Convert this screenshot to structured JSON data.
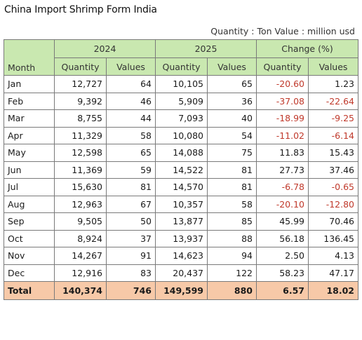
{
  "title": "China Import Shrimp Form India",
  "units": "Quantity : Ton Value : million usd",
  "header": {
    "month": "Month",
    "groups": [
      "2024",
      "2025",
      "Change (%)"
    ],
    "sub": [
      "Quantity",
      "Values",
      "Quantity",
      "Values",
      "Quantity",
      "Values"
    ]
  },
  "rows": [
    [
      "Jan",
      "12,727",
      "64",
      "10,105",
      "65",
      "-20.60",
      "1.23"
    ],
    [
      "Feb",
      "9,392",
      "46",
      "5,909",
      "36",
      "-37.08",
      "-22.64"
    ],
    [
      "Mar",
      "8,755",
      "44",
      "7,093",
      "40",
      "-18.99",
      "-9.25"
    ],
    [
      "Apr",
      "11,329",
      "58",
      "10,080",
      "54",
      "-11.02",
      "-6.14"
    ],
    [
      "May",
      "12,598",
      "65",
      "14,088",
      "75",
      "11.83",
      "15.43"
    ],
    [
      "Jun",
      "11,369",
      "59",
      "14,522",
      "81",
      "27.73",
      "37.46"
    ],
    [
      "Jul",
      "15,630",
      "81",
      "14,570",
      "81",
      "-6.78",
      "-0.65"
    ],
    [
      "Aug",
      "12,963",
      "67",
      "10,357",
      "58",
      "-20.10",
      "-12.80"
    ],
    [
      "Sep",
      "9,505",
      "50",
      "13,877",
      "85",
      "45.99",
      "70.46"
    ],
    [
      "Oct",
      "8,924",
      "37",
      "13,937",
      "88",
      "56.18",
      "136.45"
    ],
    [
      "Nov",
      "14,267",
      "91",
      "14,623",
      "94",
      "2.50",
      "4.13"
    ],
    [
      "Dec",
      "12,916",
      "83",
      "20,437",
      "122",
      "58.23",
      "47.17"
    ]
  ],
  "total": [
    "Total",
    "140,374",
    "746",
    "149,599",
    "880",
    "6.57",
    "18.02"
  ]
}
